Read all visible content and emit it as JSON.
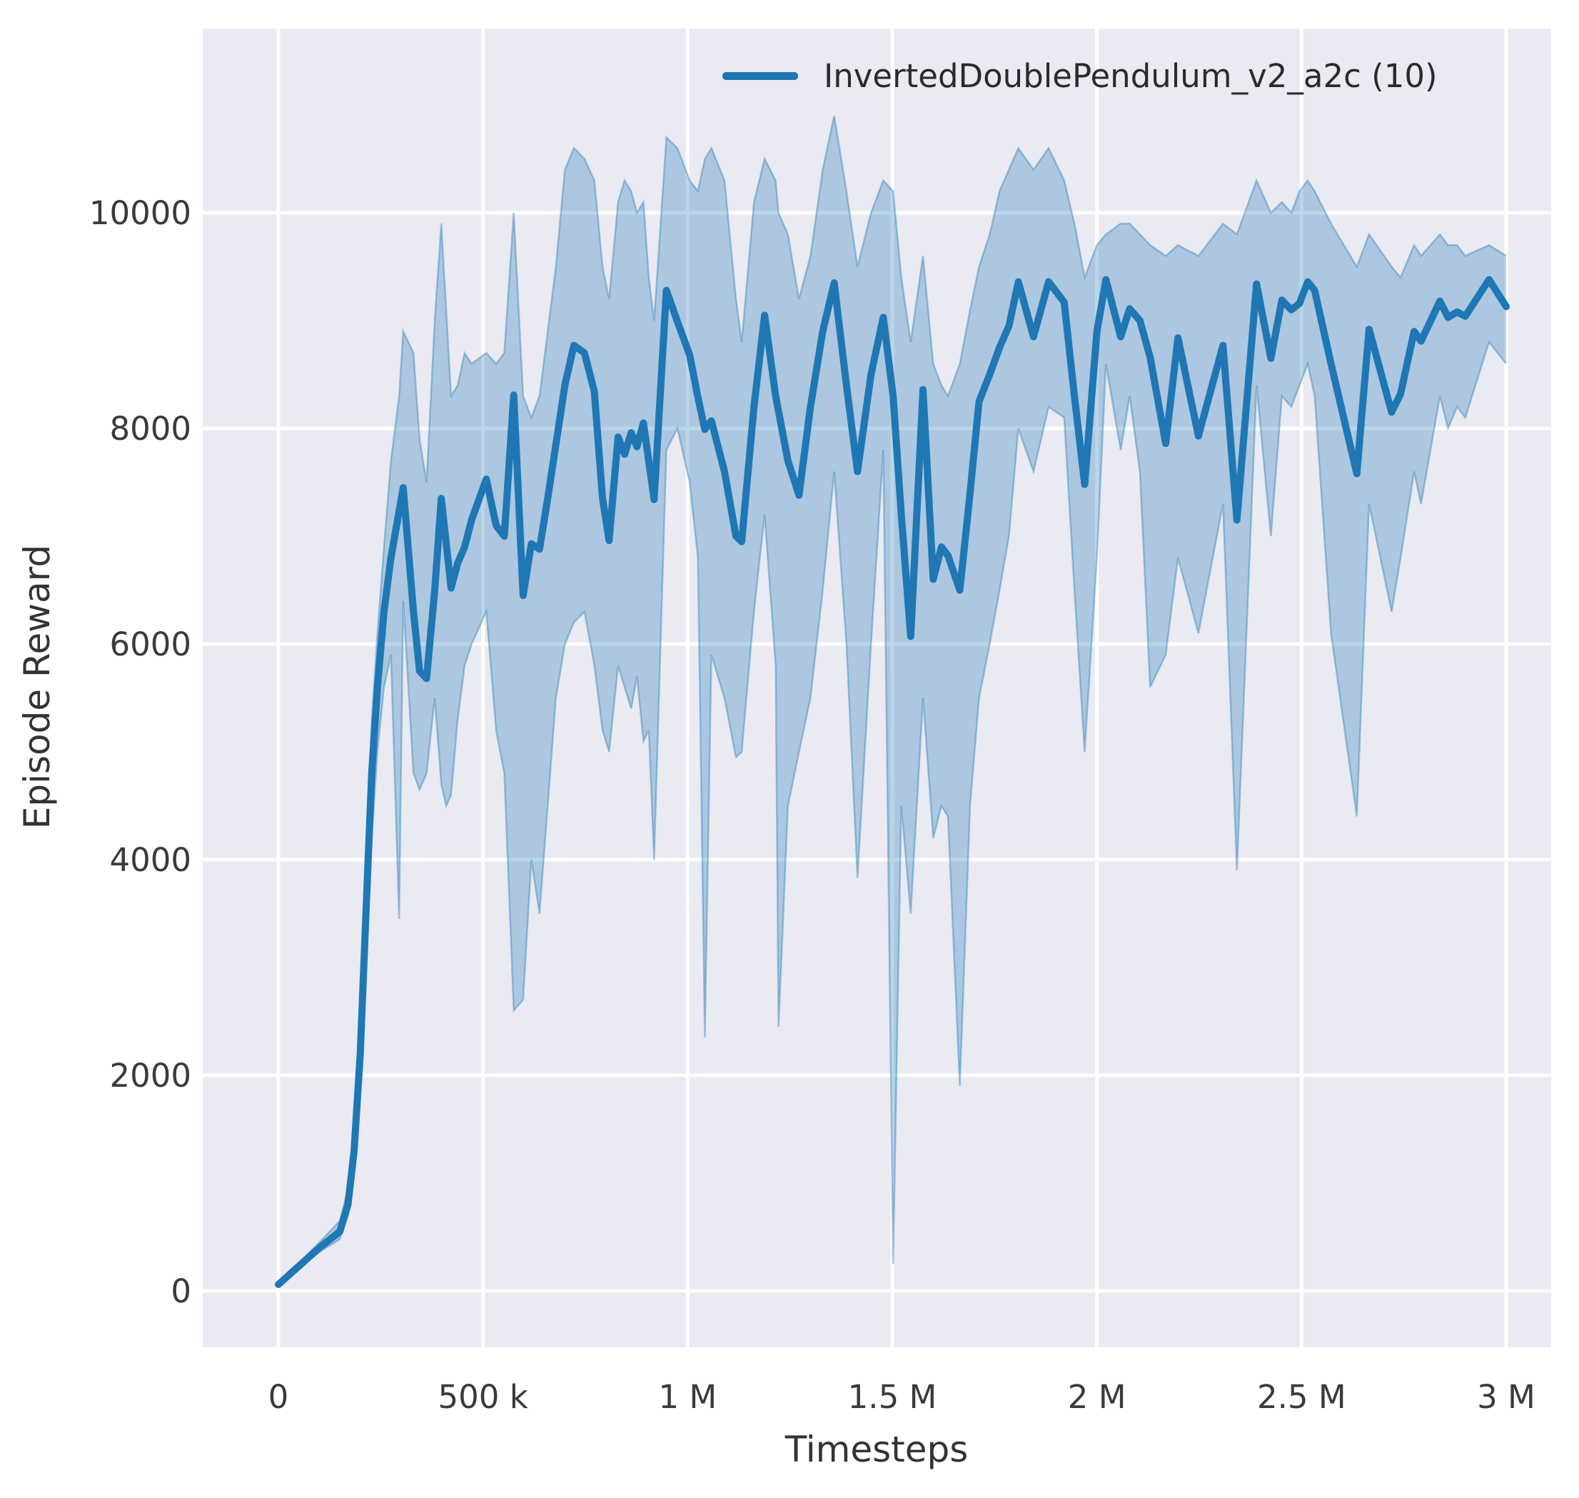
{
  "figure": {
    "plot_bg": "#eaeaf2",
    "grid_color": "#ffffff",
    "text_color": "#3a3a3a",
    "line_color": "#1f77b4",
    "band_fill": "rgba(31,119,180,0.30)",
    "band_edge": "rgba(31,119,180,0.38)"
  },
  "chart_data": {
    "type": "line",
    "title": "",
    "xlabel": "Timesteps",
    "ylabel": "Episode Reward",
    "legend_position": "upper right",
    "grid": true,
    "xlim": [
      -185000,
      3110000
    ],
    "ylim": [
      -520,
      11700
    ],
    "x_ticks": [
      {
        "t": 0,
        "label": "0"
      },
      {
        "t": 500000,
        "label": "500 k"
      },
      {
        "t": 1000000,
        "label": "1 M"
      },
      {
        "t": 1500000,
        "label": "1.5 M"
      },
      {
        "t": 2000000,
        "label": "2 M"
      },
      {
        "t": 2500000,
        "label": "2.5 M"
      },
      {
        "t": 3000000,
        "label": "3 M"
      }
    ],
    "y_ticks": [
      {
        "v": 0,
        "label": "0"
      },
      {
        "v": 2000,
        "label": "2000"
      },
      {
        "v": 4000,
        "label": "4000"
      },
      {
        "v": 6000,
        "label": "6000"
      },
      {
        "v": 8000,
        "label": "8000"
      },
      {
        "v": 10000,
        "label": "10000"
      }
    ],
    "series": [
      {
        "name": "InvertedDoublePendulum_v2_a2c (10)",
        "color": "#1f77b4",
        "points": [
          [
            0,
            60
          ],
          [
            50000,
            230
          ],
          [
            100000,
            400
          ],
          [
            150000,
            550
          ],
          [
            170000,
            800
          ],
          [
            185000,
            1300
          ],
          [
            200000,
            2200
          ],
          [
            215000,
            3600
          ],
          [
            228000,
            4800
          ],
          [
            242000,
            5600
          ],
          [
            258000,
            6300
          ],
          [
            275000,
            6800
          ],
          [
            305000,
            7450
          ],
          [
            330000,
            6300
          ],
          [
            345000,
            5750
          ],
          [
            362000,
            5680
          ],
          [
            382000,
            6500
          ],
          [
            398000,
            7350
          ],
          [
            422000,
            6520
          ],
          [
            438000,
            6750
          ],
          [
            455000,
            6900
          ],
          [
            472000,
            7150
          ],
          [
            508000,
            7530
          ],
          [
            532000,
            7100
          ],
          [
            552000,
            7000
          ],
          [
            575000,
            8310
          ],
          [
            598000,
            6450
          ],
          [
            618000,
            6930
          ],
          [
            638000,
            6880
          ],
          [
            658000,
            7350
          ],
          [
            678000,
            7850
          ],
          [
            700000,
            8400
          ],
          [
            722000,
            8770
          ],
          [
            748000,
            8700
          ],
          [
            772000,
            8340
          ],
          [
            792000,
            7350
          ],
          [
            808000,
            6960
          ],
          [
            830000,
            7920
          ],
          [
            846000,
            7760
          ],
          [
            862000,
            7960
          ],
          [
            876000,
            7830
          ],
          [
            892000,
            8050
          ],
          [
            918000,
            7340
          ],
          [
            948000,
            9280
          ],
          [
            975000,
            8990
          ],
          [
            1005000,
            8680
          ],
          [
            1025000,
            8290
          ],
          [
            1042000,
            7990
          ],
          [
            1058000,
            8070
          ],
          [
            1090000,
            7600
          ],
          [
            1118000,
            7000
          ],
          [
            1132000,
            6950
          ],
          [
            1162000,
            8200
          ],
          [
            1188000,
            9050
          ],
          [
            1215000,
            8300
          ],
          [
            1245000,
            7700
          ],
          [
            1272000,
            7380
          ],
          [
            1300000,
            8200
          ],
          [
            1330000,
            8900
          ],
          [
            1358000,
            9350
          ],
          [
            1388000,
            8400
          ],
          [
            1415000,
            7600
          ],
          [
            1448000,
            8500
          ],
          [
            1478000,
            9030
          ],
          [
            1502000,
            8300
          ],
          [
            1522000,
            7200
          ],
          [
            1545000,
            6070
          ],
          [
            1575000,
            8360
          ],
          [
            1600000,
            6600
          ],
          [
            1620000,
            6900
          ],
          [
            1636000,
            6820
          ],
          [
            1665000,
            6500
          ],
          [
            1690000,
            7400
          ],
          [
            1712000,
            8250
          ],
          [
            1738000,
            8500
          ],
          [
            1762000,
            8750
          ],
          [
            1785000,
            8950
          ],
          [
            1808000,
            9360
          ],
          [
            1845000,
            8850
          ],
          [
            1882000,
            9360
          ],
          [
            1920000,
            9170
          ],
          [
            1945000,
            8300
          ],
          [
            1970000,
            7480
          ],
          [
            2000000,
            8900
          ],
          [
            2022000,
            9380
          ],
          [
            2058000,
            8850
          ],
          [
            2080000,
            9110
          ],
          [
            2105000,
            9000
          ],
          [
            2130000,
            8660
          ],
          [
            2168000,
            7860
          ],
          [
            2198000,
            8840
          ],
          [
            2248000,
            7930
          ],
          [
            2308000,
            8770
          ],
          [
            2342000,
            7150
          ],
          [
            2390000,
            9340
          ],
          [
            2425000,
            8650
          ],
          [
            2452000,
            9190
          ],
          [
            2475000,
            9100
          ],
          [
            2495000,
            9160
          ],
          [
            2515000,
            9360
          ],
          [
            2532000,
            9280
          ],
          [
            2572000,
            8600
          ],
          [
            2635000,
            7580
          ],
          [
            2665000,
            8920
          ],
          [
            2720000,
            8150
          ],
          [
            2742000,
            8320
          ],
          [
            2775000,
            8900
          ],
          [
            2792000,
            8810
          ],
          [
            2838000,
            9180
          ],
          [
            2858000,
            9030
          ],
          [
            2880000,
            9080
          ],
          [
            2900000,
            9040
          ],
          [
            2958000,
            9380
          ],
          [
            3000000,
            9130
          ]
        ],
        "band": [
          [
            0,
            40,
            90
          ],
          [
            50000,
            210,
            260
          ],
          [
            100000,
            360,
            450
          ],
          [
            150000,
            480,
            650
          ],
          [
            170000,
            700,
            950
          ],
          [
            185000,
            1100,
            1550
          ],
          [
            200000,
            1900,
            2600
          ],
          [
            215000,
            3100,
            4100
          ],
          [
            228000,
            4200,
            5300
          ],
          [
            242000,
            5000,
            6100
          ],
          [
            258000,
            5600,
            6900
          ],
          [
            275000,
            5900,
            7700
          ],
          [
            295000,
            3450,
            8300
          ],
          [
            305000,
            6400,
            8900
          ],
          [
            330000,
            4800,
            8700
          ],
          [
            345000,
            4650,
            7900
          ],
          [
            362000,
            4800,
            7500
          ],
          [
            382000,
            5500,
            9000
          ],
          [
            398000,
            4700,
            9900
          ],
          [
            410000,
            4500,
            9100
          ],
          [
            422000,
            4600,
            8300
          ],
          [
            438000,
            5300,
            8400
          ],
          [
            455000,
            5800,
            8700
          ],
          [
            472000,
            6000,
            8600
          ],
          [
            508000,
            6300,
            8700
          ],
          [
            532000,
            5200,
            8600
          ],
          [
            552000,
            4800,
            8700
          ],
          [
            575000,
            2600,
            10000
          ],
          [
            598000,
            2700,
            8300
          ],
          [
            618000,
            4000,
            8100
          ],
          [
            638000,
            3500,
            8300
          ],
          [
            658000,
            4500,
            8900
          ],
          [
            678000,
            5500,
            9500
          ],
          [
            700000,
            6000,
            10400
          ],
          [
            722000,
            6200,
            10600
          ],
          [
            748000,
            6300,
            10500
          ],
          [
            772000,
            5800,
            10300
          ],
          [
            792000,
            5200,
            9500
          ],
          [
            808000,
            5000,
            9200
          ],
          [
            830000,
            5800,
            10100
          ],
          [
            846000,
            5600,
            10300
          ],
          [
            862000,
            5400,
            10200
          ],
          [
            876000,
            5700,
            10000
          ],
          [
            892000,
            5100,
            10100
          ],
          [
            905000,
            5200,
            9400
          ],
          [
            918000,
            4000,
            9000
          ],
          [
            948000,
            7800,
            10700
          ],
          [
            975000,
            8000,
            10600
          ],
          [
            1005000,
            7500,
            10300
          ],
          [
            1025000,
            6800,
            10200
          ],
          [
            1042000,
            2350,
            10500
          ],
          [
            1058000,
            5900,
            10600
          ],
          [
            1090000,
            5500,
            10300
          ],
          [
            1118000,
            4950,
            9200
          ],
          [
            1132000,
            5000,
            8800
          ],
          [
            1162000,
            6300,
            10100
          ],
          [
            1188000,
            7200,
            10500
          ],
          [
            1215000,
            5800,
            10300
          ],
          [
            1222000,
            2450,
            10000
          ],
          [
            1245000,
            4500,
            9800
          ],
          [
            1272000,
            5000,
            9200
          ],
          [
            1300000,
            5500,
            9600
          ],
          [
            1330000,
            6500,
            10400
          ],
          [
            1358000,
            7600,
            10900
          ],
          [
            1388000,
            6000,
            10200
          ],
          [
            1415000,
            3830,
            9500
          ],
          [
            1448000,
            6000,
            10000
          ],
          [
            1478000,
            7800,
            10300
          ],
          [
            1502000,
            250,
            10200
          ],
          [
            1522000,
            4500,
            9400
          ],
          [
            1545000,
            3500,
            8800
          ],
          [
            1575000,
            5500,
            9600
          ],
          [
            1600000,
            4200,
            8600
          ],
          [
            1620000,
            4500,
            8400
          ],
          [
            1636000,
            4400,
            8300
          ],
          [
            1665000,
            1900,
            8600
          ],
          [
            1690000,
            4500,
            9100
          ],
          [
            1712000,
            5500,
            9500
          ],
          [
            1738000,
            6000,
            9800
          ],
          [
            1762000,
            6500,
            10200
          ],
          [
            1785000,
            7000,
            10400
          ],
          [
            1808000,
            8000,
            10600
          ],
          [
            1845000,
            7600,
            10400
          ],
          [
            1882000,
            8200,
            10600
          ],
          [
            1920000,
            8100,
            10300
          ],
          [
            1945000,
            6500,
            9900
          ],
          [
            1970000,
            5000,
            9400
          ],
          [
            2000000,
            6800,
            9700
          ],
          [
            2022000,
            8600,
            9800
          ],
          [
            2058000,
            7800,
            9900
          ],
          [
            2080000,
            8300,
            9900
          ],
          [
            2105000,
            7600,
            9800
          ],
          [
            2130000,
            5600,
            9700
          ],
          [
            2168000,
            5900,
            9600
          ],
          [
            2198000,
            6800,
            9700
          ],
          [
            2248000,
            6100,
            9600
          ],
          [
            2308000,
            7300,
            9900
          ],
          [
            2342000,
            3900,
            9800
          ],
          [
            2390000,
            8400,
            10300
          ],
          [
            2425000,
            7000,
            10000
          ],
          [
            2452000,
            8300,
            10100
          ],
          [
            2475000,
            8200,
            10000
          ],
          [
            2495000,
            8400,
            10200
          ],
          [
            2515000,
            8600,
            10300
          ],
          [
            2532000,
            8300,
            10200
          ],
          [
            2572000,
            6100,
            9900
          ],
          [
            2635000,
            4400,
            9500
          ],
          [
            2665000,
            7300,
            9800
          ],
          [
            2720000,
            6300,
            9500
          ],
          [
            2742000,
            6800,
            9400
          ],
          [
            2775000,
            7600,
            9700
          ],
          [
            2792000,
            7300,
            9600
          ],
          [
            2838000,
            8300,
            9800
          ],
          [
            2858000,
            8000,
            9700
          ],
          [
            2880000,
            8200,
            9700
          ],
          [
            2900000,
            8100,
            9600
          ],
          [
            2958000,
            8800,
            9700
          ],
          [
            3000000,
            8600,
            9600
          ]
        ]
      }
    ]
  }
}
